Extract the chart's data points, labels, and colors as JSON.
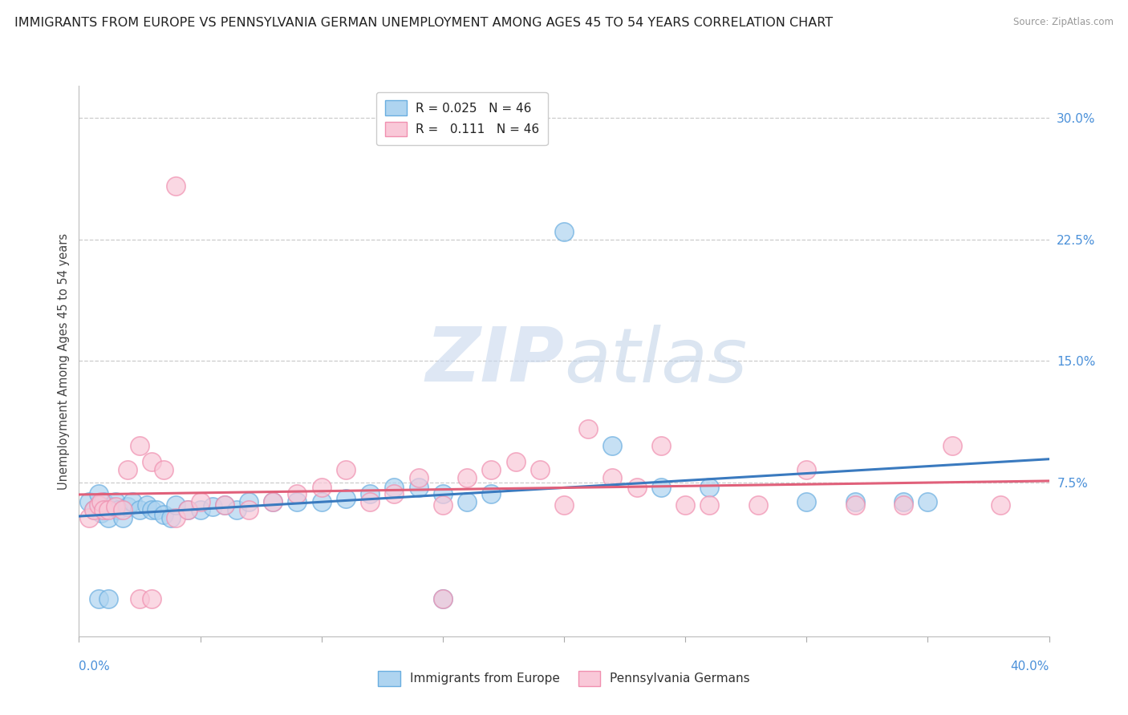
{
  "title": "IMMIGRANTS FROM EUROPE VS PENNSYLVANIA GERMAN UNEMPLOYMENT AMONG AGES 45 TO 54 YEARS CORRELATION CHART",
  "source": "Source: ZipAtlas.com",
  "ylabel": "Unemployment Among Ages 45 to 54 years",
  "xlim": [
    0.0,
    0.4
  ],
  "ylim": [
    -0.02,
    0.32
  ],
  "yticks": [
    0.075,
    0.15,
    0.225,
    0.3
  ],
  "ytick_labels": [
    "7.5%",
    "15.0%",
    "22.5%",
    "30.0%"
  ],
  "color_blue_fill": "#aed4f0",
  "color_blue_edge": "#6aaee0",
  "color_pink_fill": "#f9c8d8",
  "color_pink_edge": "#f090b0",
  "color_blue_line": "#3a7abf",
  "color_pink_line": "#e0607a",
  "color_tick_label": "#4a90d9",
  "legend_label_blue": "Immigrants from Europe",
  "legend_label_pink": "Pennsylvania Germans",
  "background_color": "#ffffff",
  "grid_color": "#cccccc",
  "title_fontsize": 11.5,
  "tick_fontsize": 11,
  "watermark_color": "#dde8f5",
  "blue_x": [
    0.004,
    0.006,
    0.008,
    0.009,
    0.01,
    0.012,
    0.013,
    0.015,
    0.016,
    0.018,
    0.02,
    0.022,
    0.025,
    0.028,
    0.03,
    0.032,
    0.035,
    0.038,
    0.04,
    0.045,
    0.05,
    0.055,
    0.06,
    0.065,
    0.07,
    0.08,
    0.09,
    0.1,
    0.11,
    0.12,
    0.13,
    0.14,
    0.15,
    0.16,
    0.17,
    0.2,
    0.22,
    0.24,
    0.26,
    0.3,
    0.32,
    0.34,
    0.008,
    0.012,
    0.15,
    0.35
  ],
  "blue_y": [
    0.063,
    0.058,
    0.068,
    0.056,
    0.063,
    0.053,
    0.06,
    0.063,
    0.058,
    0.053,
    0.06,
    0.063,
    0.058,
    0.061,
    0.058,
    0.058,
    0.055,
    0.053,
    0.061,
    0.058,
    0.058,
    0.06,
    0.061,
    0.058,
    0.063,
    0.063,
    0.063,
    0.063,
    0.065,
    0.068,
    0.072,
    0.072,
    0.068,
    0.063,
    0.068,
    0.23,
    0.098,
    0.072,
    0.072,
    0.063,
    0.063,
    0.063,
    0.003,
    0.003,
    0.003,
    0.063
  ],
  "pink_x": [
    0.004,
    0.006,
    0.008,
    0.009,
    0.01,
    0.012,
    0.015,
    0.018,
    0.02,
    0.025,
    0.03,
    0.035,
    0.04,
    0.045,
    0.05,
    0.06,
    0.07,
    0.08,
    0.09,
    0.1,
    0.11,
    0.12,
    0.13,
    0.14,
    0.15,
    0.16,
    0.17,
    0.18,
    0.19,
    0.2,
    0.21,
    0.22,
    0.23,
    0.24,
    0.25,
    0.26,
    0.28,
    0.3,
    0.32,
    0.34,
    0.36,
    0.38,
    0.04,
    0.025,
    0.03,
    0.15
  ],
  "pink_y": [
    0.053,
    0.058,
    0.061,
    0.063,
    0.058,
    0.058,
    0.06,
    0.058,
    0.083,
    0.098,
    0.088,
    0.083,
    0.053,
    0.058,
    0.063,
    0.061,
    0.058,
    0.063,
    0.068,
    0.072,
    0.083,
    0.063,
    0.068,
    0.078,
    0.061,
    0.078,
    0.083,
    0.088,
    0.083,
    0.061,
    0.108,
    0.078,
    0.072,
    0.098,
    0.061,
    0.061,
    0.061,
    0.083,
    0.061,
    0.061,
    0.098,
    0.061,
    0.258,
    0.003,
    0.003,
    0.003
  ]
}
